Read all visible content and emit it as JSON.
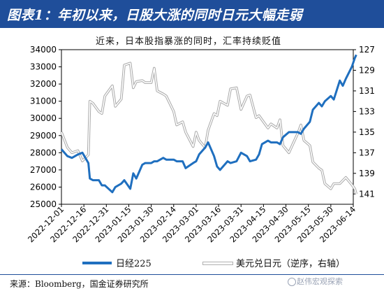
{
  "header": {
    "title": "图表1：年初以来，日股大涨的同时日元大幅走弱"
  },
  "chart_data": {
    "type": "line",
    "title": "近来，日本股指暴涨的同时，汇率持续贬值",
    "x_ticks": [
      "2022-12-01",
      "2022-12-16",
      "2022-12-31",
      "2023-01-15",
      "2023-01-30",
      "2023-02-14",
      "2023-03-01",
      "2023-03-16",
      "2023-03-31",
      "2023-04-15",
      "2023-04-30",
      "2023-05-15",
      "2023-05-30",
      "2023-06-14"
    ],
    "y_left": {
      "min": 25000,
      "max": 34000,
      "ticks": [
        25000,
        26000,
        27000,
        28000,
        29000,
        30000,
        31000,
        32000,
        33000,
        34000
      ]
    },
    "y_right": {
      "min": 127,
      "max": 142,
      "reversed": true,
      "ticks": [
        127,
        129,
        131,
        133,
        135,
        137,
        139,
        141
      ]
    },
    "series": [
      {
        "name": "日经225",
        "axis": "left",
        "color": "#1f6fbf",
        "x": [
          "2022-12-01",
          "2022-12-05",
          "2022-12-08",
          "2022-12-12",
          "2022-12-15",
          "2022-12-19",
          "2022-12-20",
          "2022-12-22",
          "2022-12-26",
          "2022-12-28",
          "2022-12-30",
          "2023-01-04",
          "2023-01-06",
          "2023-01-10",
          "2023-01-12",
          "2023-01-16",
          "2023-01-18",
          "2023-01-20",
          "2023-01-24",
          "2023-01-26",
          "2023-01-30",
          "2023-02-01",
          "2023-02-03",
          "2023-02-07",
          "2023-02-09",
          "2023-02-14",
          "2023-02-16",
          "2023-02-20",
          "2023-02-22",
          "2023-02-27",
          "2023-03-01",
          "2023-03-03",
          "2023-03-07",
          "2023-03-09",
          "2023-03-13",
          "2023-03-15",
          "2023-03-17",
          "2023-03-22",
          "2023-03-24",
          "2023-03-28",
          "2023-03-31",
          "2023-04-04",
          "2023-04-06",
          "2023-04-10",
          "2023-04-12",
          "2023-04-14",
          "2023-04-18",
          "2023-04-20",
          "2023-04-24",
          "2023-04-26",
          "2023-04-28",
          "2023-05-02",
          "2023-05-08",
          "2023-05-10",
          "2023-05-12",
          "2023-05-16",
          "2023-05-18",
          "2023-05-22",
          "2023-05-24",
          "2023-05-26",
          "2023-05-30",
          "2023-06-01",
          "2023-06-05",
          "2023-06-07",
          "2023-06-09",
          "2023-06-13",
          "2023-06-15",
          "2023-06-16"
        ],
        "values": [
          28200,
          27800,
          27700,
          27900,
          28000,
          27400,
          26500,
          26400,
          26400,
          26100,
          26100,
          25700,
          26000,
          26200,
          26400,
          25900,
          26800,
          26500,
          27300,
          27400,
          27400,
          27500,
          27500,
          27700,
          27600,
          27600,
          27500,
          27500,
          27100,
          27400,
          27500,
          27900,
          28300,
          28600,
          27800,
          27200,
          27000,
          27500,
          27400,
          27500,
          28000,
          27800,
          27500,
          27600,
          27900,
          28500,
          28700,
          28600,
          28600,
          28500,
          28900,
          29200,
          29200,
          29100,
          29400,
          29800,
          30500,
          30900,
          30700,
          31000,
          31300,
          31100,
          32200,
          31900,
          32300,
          33000,
          33500,
          33700
        ]
      },
      {
        "name": "美元兑日元（逆序，右轴）",
        "axis": "right",
        "color": "#b0b0b0",
        "x": [
          "2022-12-01",
          "2022-12-05",
          "2022-12-08",
          "2022-12-12",
          "2022-12-15",
          "2022-12-19",
          "2022-12-20",
          "2022-12-22",
          "2022-12-26",
          "2022-12-28",
          "2022-12-30",
          "2023-01-04",
          "2023-01-06",
          "2023-01-10",
          "2023-01-12",
          "2023-01-16",
          "2023-01-18",
          "2023-01-20",
          "2023-01-24",
          "2023-01-26",
          "2023-01-30",
          "2023-02-01",
          "2023-02-03",
          "2023-02-07",
          "2023-02-09",
          "2023-02-14",
          "2023-02-16",
          "2023-02-20",
          "2023-02-22",
          "2023-02-27",
          "2023-03-01",
          "2023-03-03",
          "2023-03-07",
          "2023-03-09",
          "2023-03-13",
          "2023-03-15",
          "2023-03-17",
          "2023-03-22",
          "2023-03-24",
          "2023-03-28",
          "2023-03-31",
          "2023-04-04",
          "2023-04-06",
          "2023-04-10",
          "2023-04-12",
          "2023-04-14",
          "2023-04-18",
          "2023-04-20",
          "2023-04-24",
          "2023-04-26",
          "2023-04-28",
          "2023-05-02",
          "2023-05-08",
          "2023-05-10",
          "2023-05-12",
          "2023-05-16",
          "2023-05-18",
          "2023-05-22",
          "2023-05-24",
          "2023-05-26",
          "2023-05-30",
          "2023-06-01",
          "2023-06-05",
          "2023-06-07",
          "2023-06-09",
          "2023-06-13",
          "2023-06-15",
          "2023-06-16"
        ],
        "values": [
          135.0,
          136.5,
          137.0,
          136.8,
          137.8,
          137.2,
          132.0,
          132.2,
          133.0,
          133.2,
          131.5,
          130.5,
          132.5,
          131.8,
          128.5,
          128.3,
          130.7,
          130.1,
          130.0,
          130.2,
          130.2,
          128.8,
          131.0,
          131.3,
          131.5,
          133.0,
          134.3,
          134.0,
          135.0,
          136.4,
          135.0,
          135.8,
          136.5,
          134.8,
          133.2,
          133.4,
          132.0,
          132.4,
          130.8,
          130.7,
          132.8,
          131.5,
          131.4,
          133.6,
          133.4,
          133.8,
          134.6,
          134.2,
          134.6,
          133.8,
          136.3,
          137.0,
          135.1,
          134.3,
          135.8,
          136.3,
          137.9,
          138.5,
          138.7,
          140.0,
          140.5,
          140.0,
          140.0,
          139.7,
          139.4,
          140.1,
          140.5,
          141.0
        ]
      }
    ],
    "legend_position": "bottom",
    "grid": false
  },
  "legend": {
    "items": [
      {
        "label": "日经225",
        "color": "#1f6fbf"
      },
      {
        "label": "美元兑日元（逆序，右轴）",
        "color": "#b0b0b0"
      }
    ]
  },
  "footer": {
    "source": "来源：Bloomberg，国金证券研究所"
  },
  "watermark": {
    "text": "赵伟宏观探索"
  },
  "colors": {
    "header_bg": "#1f4e9a",
    "accent": "#1f4e9a"
  }
}
